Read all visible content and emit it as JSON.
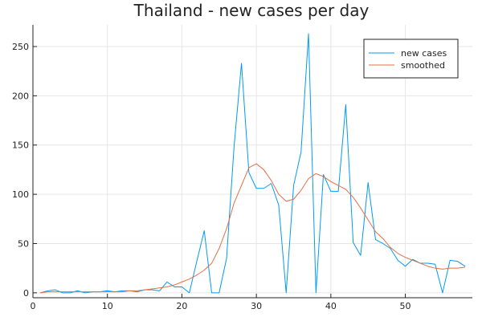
{
  "chart_data": {
    "type": "line",
    "title": "Thailand - new cases per day",
    "xlabel": "",
    "ylabel": "",
    "xlim": [
      0,
      59
    ],
    "ylim": [
      -5,
      272
    ],
    "xticks": [
      0,
      10,
      20,
      30,
      40,
      50
    ],
    "yticks": [
      0,
      50,
      100,
      150,
      200,
      250
    ],
    "grid": true,
    "legend_position": "top-right",
    "x": [
      1,
      2,
      3,
      4,
      5,
      6,
      7,
      8,
      9,
      10,
      11,
      12,
      13,
      14,
      15,
      16,
      17,
      18,
      19,
      20,
      21,
      22,
      23,
      24,
      25,
      26,
      27,
      28,
      29,
      30,
      31,
      32,
      33,
      34,
      35,
      36,
      37,
      38,
      39,
      40,
      41,
      42,
      43,
      44,
      45,
      46,
      47,
      48,
      49,
      50,
      51,
      52,
      53,
      54,
      55,
      56,
      57,
      58
    ],
    "series": [
      {
        "name": "new cases",
        "color": "#009AF9",
        "values": [
          0,
          2,
          3,
          0,
          0,
          2,
          0,
          1,
          1,
          2,
          1,
          2,
          2,
          1,
          3,
          3,
          2,
          11,
          6,
          6,
          0,
          32,
          63,
          0,
          0,
          35,
          148,
          233,
          122,
          106,
          106,
          111,
          89,
          0,
          109,
          143,
          263,
          0,
          120,
          103,
          103,
          191,
          51,
          38,
          112,
          54,
          50,
          45,
          33,
          27,
          34,
          30,
          30,
          29,
          0,
          33,
          32,
          27
        ]
      },
      {
        "name": "smoothed",
        "color": "#E26F46",
        "values": [
          0,
          1,
          1,
          1,
          1,
          1,
          1,
          1,
          1,
          1,
          1,
          1,
          2,
          2,
          3,
          4,
          5,
          6,
          8,
          11,
          14,
          18,
          23,
          30,
          45,
          65,
          91,
          109,
          127,
          131,
          125,
          114,
          100,
          93,
          95,
          104,
          116,
          121,
          118,
          113,
          109,
          105,
          97,
          86,
          74,
          62,
          55,
          46,
          40,
          36,
          33,
          30,
          27,
          25,
          24,
          25,
          25,
          26
        ]
      }
    ]
  }
}
